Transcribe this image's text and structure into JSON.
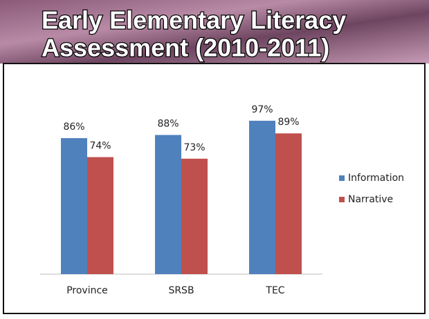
{
  "chart_data": {
    "type": "bar",
    "title": [
      "Early Elementary Literacy",
      "Assessment (2010-2011)"
    ],
    "categories": [
      "Province",
      "SRSB",
      "TEC"
    ],
    "series": [
      {
        "name": "Information",
        "color": "#4f81bd",
        "values": [
          86,
          88,
          97
        ],
        "value_labels": [
          "86%",
          "88%",
          "97%"
        ]
      },
      {
        "name": "Narrative",
        "color": "#c0504d",
        "values": [
          74,
          73,
          89
        ],
        "value_labels": [
          "74%",
          "73%",
          "89%"
        ]
      }
    ],
    "legend": "right"
  }
}
